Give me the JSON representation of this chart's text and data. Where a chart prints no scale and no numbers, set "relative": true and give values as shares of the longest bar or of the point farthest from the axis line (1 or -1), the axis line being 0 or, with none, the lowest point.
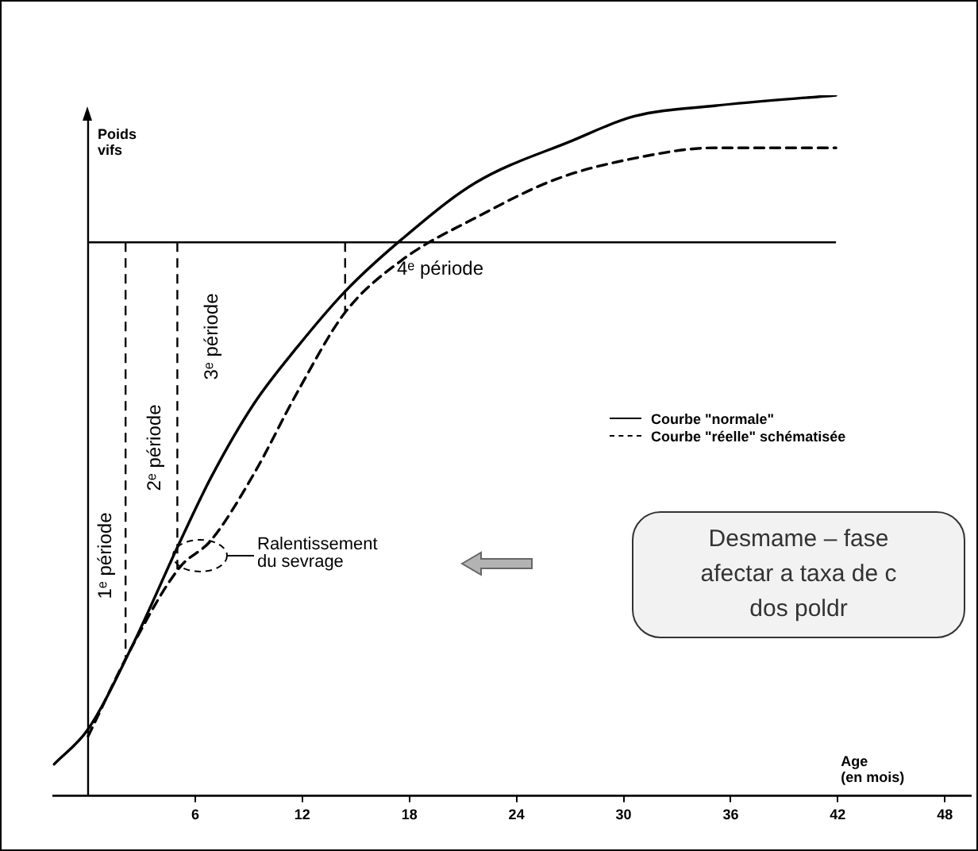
{
  "chart_data": {
    "type": "line",
    "relative": true,
    "xlabel": "Age\n(en mois)",
    "ylabel": "Poids\nvifs",
    "xlim": [
      -2,
      49.5
    ],
    "xticks": [
      6,
      12,
      18,
      24,
      30,
      36,
      42,
      48
    ],
    "legend": "right",
    "series": [
      {
        "name": "Courbe \"normale\"",
        "color": "#000000",
        "line_style": "solid",
        "x": [
          -1.9,
          0,
          2.4,
          5.1,
          6.9,
          9.3,
          11.7,
          14.4,
          17.6,
          21.7,
          27.1,
          30.6,
          35.1,
          41.9
        ],
        "values": [
          0.045,
          0.095,
          0.21,
          0.36,
          0.455,
          0.56,
          0.64,
          0.72,
          0.795,
          0.875,
          0.935,
          0.97,
          0.985,
          1
        ]
      },
      {
        "name": "Courbe \"réelle\" schématisée",
        "color": "#000000",
        "line_style": "dashed",
        "x": [
          0,
          2.4,
          5.1,
          6.9,
          9.3,
          11.7,
          14.4,
          17.6,
          21.7,
          26.2,
          30.6,
          35.1,
          41.9
        ],
        "values": [
          0.085,
          0.21,
          0.325,
          0.365,
          0.46,
          0.575,
          0.69,
          0.765,
          0.825,
          0.88,
          0.91,
          0.925,
          0.925
        ]
      }
    ],
    "ref_lines": [
      {
        "axis": "y",
        "value": 0.79,
        "color": "#000000"
      },
      {
        "axis": "x",
        "value": 0,
        "color": "#000000",
        "line_style": "solid"
      },
      {
        "axis": "x",
        "value": 2.1,
        "color": "#000000",
        "line_style": "dashed"
      },
      {
        "axis": "x",
        "value": 5,
        "color": "#000000",
        "line_style": "dashed"
      },
      {
        "axis": "x",
        "value": 14.4,
        "color": "#000000",
        "line_style": "dashed"
      }
    ],
    "annotations": [
      "1ᵉ période",
      "2ᵉ période",
      "3ᵉ période",
      "4ᵉ période",
      "Ralentissement\ndu sevrage",
      "Desmame – fase\nafectar a taxa de c\ndos poldr"
    ]
  }
}
